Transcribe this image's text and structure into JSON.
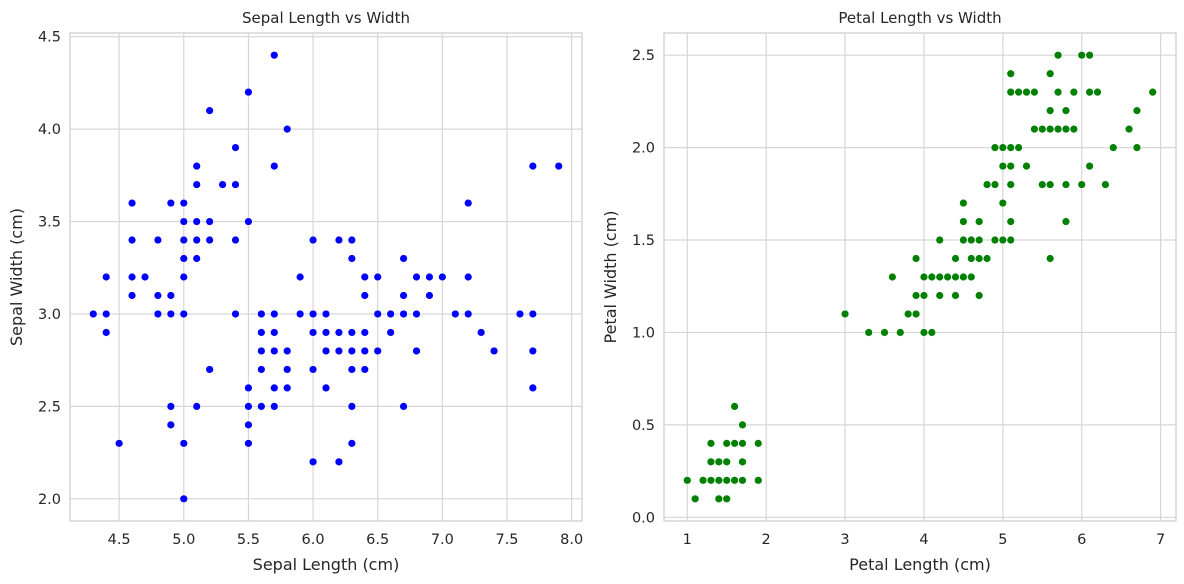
{
  "chart_data": [
    {
      "type": "scatter",
      "title": "Sepal Length vs Width",
      "xlabel": "Sepal Length (cm)",
      "ylabel": "Sepal Width (cm)",
      "xlim": [
        4.12,
        8.08
      ],
      "ylim": [
        1.88,
        4.52
      ],
      "xticks": [
        4.5,
        5.0,
        5.5,
        6.0,
        6.5,
        7.0,
        7.5,
        8.0
      ],
      "xtick_labels": [
        "4.5",
        "5.0",
        "5.5",
        "6.0",
        "6.5",
        "7.0",
        "7.5",
        "8.0"
      ],
      "yticks": [
        2.0,
        2.5,
        3.0,
        3.5,
        4.0,
        4.5
      ],
      "ytick_labels": [
        "2.0",
        "2.5",
        "3.0",
        "3.5",
        "4.0",
        "4.5"
      ],
      "grid": true,
      "color": "#0000ff",
      "points": [
        [
          5.1,
          3.5
        ],
        [
          4.9,
          3.0
        ],
        [
          4.7,
          3.2
        ],
        [
          4.6,
          3.1
        ],
        [
          5.0,
          3.6
        ],
        [
          5.4,
          3.9
        ],
        [
          4.6,
          3.4
        ],
        [
          5.0,
          3.4
        ],
        [
          4.4,
          2.9
        ],
        [
          4.9,
          3.1
        ],
        [
          5.4,
          3.7
        ],
        [
          4.8,
          3.4
        ],
        [
          4.8,
          3.0
        ],
        [
          4.3,
          3.0
        ],
        [
          5.8,
          4.0
        ],
        [
          5.7,
          4.4
        ],
        [
          5.4,
          3.9
        ],
        [
          5.1,
          3.5
        ],
        [
          5.7,
          3.8
        ],
        [
          5.1,
          3.8
        ],
        [
          5.4,
          3.4
        ],
        [
          5.1,
          3.7
        ],
        [
          4.6,
          3.6
        ],
        [
          5.1,
          3.3
        ],
        [
          4.8,
          3.4
        ],
        [
          5.0,
          3.0
        ],
        [
          5.0,
          3.4
        ],
        [
          5.2,
          3.5
        ],
        [
          5.2,
          3.4
        ],
        [
          4.7,
          3.2
        ],
        [
          4.8,
          3.1
        ],
        [
          5.4,
          3.4
        ],
        [
          5.2,
          4.1
        ],
        [
          5.5,
          4.2
        ],
        [
          4.9,
          3.1
        ],
        [
          5.0,
          3.2
        ],
        [
          5.5,
          3.5
        ],
        [
          4.9,
          3.6
        ],
        [
          4.4,
          3.0
        ],
        [
          5.1,
          3.4
        ],
        [
          5.0,
          3.5
        ],
        [
          4.5,
          2.3
        ],
        [
          4.4,
          3.2
        ],
        [
          5.0,
          3.5
        ],
        [
          5.1,
          3.8
        ],
        [
          4.8,
          3.0
        ],
        [
          5.1,
          3.8
        ],
        [
          4.6,
          3.2
        ],
        [
          5.3,
          3.7
        ],
        [
          5.0,
          3.3
        ],
        [
          7.0,
          3.2
        ],
        [
          6.4,
          3.2
        ],
        [
          6.9,
          3.1
        ],
        [
          5.5,
          2.3
        ],
        [
          6.5,
          2.8
        ],
        [
          5.7,
          2.8
        ],
        [
          6.3,
          3.3
        ],
        [
          4.9,
          2.4
        ],
        [
          6.6,
          2.9
        ],
        [
          5.2,
          2.7
        ],
        [
          5.0,
          2.0
        ],
        [
          5.9,
          3.0
        ],
        [
          6.0,
          2.2
        ],
        [
          6.1,
          2.9
        ],
        [
          5.6,
          2.9
        ],
        [
          6.7,
          3.1
        ],
        [
          5.6,
          3.0
        ],
        [
          5.8,
          2.7
        ],
        [
          6.2,
          2.2
        ],
        [
          5.6,
          2.5
        ],
        [
          5.9,
          3.2
        ],
        [
          6.1,
          2.8
        ],
        [
          6.3,
          2.5
        ],
        [
          6.1,
          2.8
        ],
        [
          6.4,
          2.9
        ],
        [
          6.6,
          3.0
        ],
        [
          6.8,
          2.8
        ],
        [
          6.7,
          3.0
        ],
        [
          6.0,
          2.9
        ],
        [
          5.7,
          2.6
        ],
        [
          5.5,
          2.4
        ],
        [
          5.5,
          2.4
        ],
        [
          5.8,
          2.7
        ],
        [
          6.0,
          2.7
        ],
        [
          5.4,
          3.0
        ],
        [
          6.0,
          3.4
        ],
        [
          6.7,
          3.1
        ],
        [
          6.3,
          2.3
        ],
        [
          5.6,
          3.0
        ],
        [
          5.5,
          2.5
        ],
        [
          5.5,
          2.6
        ],
        [
          6.1,
          3.0
        ],
        [
          5.8,
          2.6
        ],
        [
          5.0,
          2.3
        ],
        [
          5.6,
          2.7
        ],
        [
          5.7,
          3.0
        ],
        [
          5.7,
          2.9
        ],
        [
          6.2,
          2.9
        ],
        [
          5.1,
          2.5
        ],
        [
          5.7,
          2.8
        ],
        [
          6.3,
          3.3
        ],
        [
          5.8,
          2.7
        ],
        [
          7.1,
          3.0
        ],
        [
          6.3,
          2.9
        ],
        [
          6.5,
          3.0
        ],
        [
          7.6,
          3.0
        ],
        [
          4.9,
          2.5
        ],
        [
          7.3,
          2.9
        ],
        [
          6.7,
          2.5
        ],
        [
          7.2,
          3.6
        ],
        [
          6.5,
          3.2
        ],
        [
          6.4,
          2.7
        ],
        [
          6.8,
          3.0
        ],
        [
          5.7,
          2.5
        ],
        [
          5.8,
          2.8
        ],
        [
          6.4,
          3.2
        ],
        [
          6.5,
          3.0
        ],
        [
          7.7,
          3.8
        ],
        [
          7.7,
          2.6
        ],
        [
          6.0,
          2.2
        ],
        [
          6.9,
          3.2
        ],
        [
          5.6,
          2.8
        ],
        [
          7.7,
          2.8
        ],
        [
          6.3,
          2.7
        ],
        [
          6.7,
          3.3
        ],
        [
          7.2,
          3.2
        ],
        [
          6.2,
          2.8
        ],
        [
          6.1,
          3.0
        ],
        [
          6.4,
          2.8
        ],
        [
          7.2,
          3.0
        ],
        [
          7.4,
          2.8
        ],
        [
          7.9,
          3.8
        ],
        [
          6.4,
          2.8
        ],
        [
          6.3,
          2.8
        ],
        [
          6.1,
          2.6
        ],
        [
          7.7,
          3.0
        ],
        [
          6.3,
          3.4
        ],
        [
          6.4,
          3.1
        ],
        [
          6.0,
          3.0
        ],
        [
          6.9,
          3.1
        ],
        [
          6.7,
          3.1
        ],
        [
          6.9,
          3.1
        ],
        [
          5.8,
          2.7
        ],
        [
          6.8,
          3.2
        ],
        [
          6.7,
          3.3
        ],
        [
          6.7,
          3.0
        ],
        [
          6.3,
          2.5
        ],
        [
          6.5,
          3.0
        ],
        [
          6.2,
          3.4
        ],
        [
          5.9,
          3.0
        ]
      ]
    },
    {
      "type": "scatter",
      "title": "Petal Length vs Width",
      "xlabel": "Petal Length (cm)",
      "ylabel": "Petal Width (cm)",
      "xlim": [
        0.705,
        7.195
      ],
      "ylim": [
        -0.02,
        2.62
      ],
      "xticks": [
        1,
        2,
        3,
        4,
        5,
        6,
        7
      ],
      "xtick_labels": [
        "1",
        "2",
        "3",
        "4",
        "5",
        "6",
        "7"
      ],
      "yticks": [
        0.0,
        0.5,
        1.0,
        1.5,
        2.0,
        2.5
      ],
      "ytick_labels": [
        "0.0",
        "0.5",
        "1.0",
        "1.5",
        "2.0",
        "2.5"
      ],
      "grid": true,
      "color": "#008000",
      "points": [
        [
          1.4,
          0.2
        ],
        [
          1.4,
          0.2
        ],
        [
          1.3,
          0.2
        ],
        [
          1.5,
          0.2
        ],
        [
          1.4,
          0.2
        ],
        [
          1.7,
          0.4
        ],
        [
          1.4,
          0.3
        ],
        [
          1.5,
          0.2
        ],
        [
          1.4,
          0.2
        ],
        [
          1.5,
          0.1
        ],
        [
          1.5,
          0.2
        ],
        [
          1.6,
          0.2
        ],
        [
          1.4,
          0.1
        ],
        [
          1.1,
          0.1
        ],
        [
          1.2,
          0.2
        ],
        [
          1.5,
          0.4
        ],
        [
          1.3,
          0.4
        ],
        [
          1.4,
          0.3
        ],
        [
          1.7,
          0.3
        ],
        [
          1.5,
          0.3
        ],
        [
          1.7,
          0.2
        ],
        [
          1.5,
          0.4
        ],
        [
          1.0,
          0.2
        ],
        [
          1.7,
          0.5
        ],
        [
          1.9,
          0.2
        ],
        [
          1.6,
          0.2
        ],
        [
          1.6,
          0.4
        ],
        [
          1.5,
          0.2
        ],
        [
          1.4,
          0.2
        ],
        [
          1.6,
          0.2
        ],
        [
          1.6,
          0.2
        ],
        [
          1.5,
          0.4
        ],
        [
          1.5,
          0.1
        ],
        [
          1.4,
          0.2
        ],
        [
          1.5,
          0.2
        ],
        [
          1.2,
          0.2
        ],
        [
          1.3,
          0.2
        ],
        [
          1.4,
          0.1
        ],
        [
          1.3,
          0.2
        ],
        [
          1.5,
          0.2
        ],
        [
          1.3,
          0.3
        ],
        [
          1.3,
          0.3
        ],
        [
          1.3,
          0.2
        ],
        [
          1.6,
          0.6
        ],
        [
          1.9,
          0.4
        ],
        [
          1.4,
          0.3
        ],
        [
          1.6,
          0.2
        ],
        [
          1.4,
          0.2
        ],
        [
          1.5,
          0.2
        ],
        [
          1.4,
          0.2
        ],
        [
          4.7,
          1.4
        ],
        [
          4.5,
          1.5
        ],
        [
          4.9,
          1.5
        ],
        [
          4.0,
          1.3
        ],
        [
          4.6,
          1.5
        ],
        [
          4.5,
          1.3
        ],
        [
          4.7,
          1.6
        ],
        [
          3.3,
          1.0
        ],
        [
          4.6,
          1.3
        ],
        [
          3.9,
          1.4
        ],
        [
          3.5,
          1.0
        ],
        [
          4.2,
          1.5
        ],
        [
          4.0,
          1.0
        ],
        [
          4.7,
          1.4
        ],
        [
          3.6,
          1.3
        ],
        [
          4.4,
          1.4
        ],
        [
          4.5,
          1.5
        ],
        [
          4.1,
          1.0
        ],
        [
          4.5,
          1.5
        ],
        [
          3.9,
          1.1
        ],
        [
          4.8,
          1.8
        ],
        [
          4.0,
          1.3
        ],
        [
          4.9,
          1.5
        ],
        [
          4.7,
          1.2
        ],
        [
          4.3,
          1.3
        ],
        [
          4.4,
          1.4
        ],
        [
          4.8,
          1.4
        ],
        [
          5.0,
          1.7
        ],
        [
          4.5,
          1.5
        ],
        [
          3.5,
          1.0
        ],
        [
          3.8,
          1.1
        ],
        [
          3.7,
          1.0
        ],
        [
          3.9,
          1.2
        ],
        [
          5.1,
          1.6
        ],
        [
          4.5,
          1.5
        ],
        [
          4.5,
          1.6
        ],
        [
          4.7,
          1.5
        ],
        [
          4.4,
          1.3
        ],
        [
          4.1,
          1.3
        ],
        [
          4.0,
          1.3
        ],
        [
          4.4,
          1.2
        ],
        [
          4.6,
          1.4
        ],
        [
          4.0,
          1.2
        ],
        [
          3.3,
          1.0
        ],
        [
          4.2,
          1.3
        ],
        [
          4.2,
          1.2
        ],
        [
          4.2,
          1.3
        ],
        [
          4.3,
          1.3
        ],
        [
          3.0,
          1.1
        ],
        [
          4.1,
          1.3
        ],
        [
          6.0,
          2.5
        ],
        [
          5.1,
          1.9
        ],
        [
          5.9,
          2.1
        ],
        [
          5.6,
          1.8
        ],
        [
          5.8,
          2.2
        ],
        [
          6.6,
          2.1
        ],
        [
          4.5,
          1.7
        ],
        [
          6.3,
          1.8
        ],
        [
          5.8,
          1.8
        ],
        [
          6.1,
          2.5
        ],
        [
          5.1,
          2.0
        ],
        [
          5.3,
          1.9
        ],
        [
          5.5,
          2.1
        ],
        [
          5.0,
          2.0
        ],
        [
          5.1,
          2.4
        ],
        [
          5.3,
          2.3
        ],
        [
          5.5,
          1.8
        ],
        [
          6.7,
          2.2
        ],
        [
          6.9,
          2.3
        ],
        [
          5.0,
          1.5
        ],
        [
          5.7,
          2.3
        ],
        [
          4.9,
          2.0
        ],
        [
          6.7,
          2.0
        ],
        [
          4.9,
          1.8
        ],
        [
          5.7,
          2.1
        ],
        [
          6.0,
          1.8
        ],
        [
          4.8,
          1.8
        ],
        [
          4.9,
          1.8
        ],
        [
          5.6,
          2.1
        ],
        [
          5.8,
          1.6
        ],
        [
          6.1,
          1.9
        ],
        [
          6.4,
          2.0
        ],
        [
          5.6,
          2.2
        ],
        [
          5.1,
          1.5
        ],
        [
          5.6,
          1.4
        ],
        [
          6.1,
          2.3
        ],
        [
          5.6,
          2.4
        ],
        [
          5.5,
          1.8
        ],
        [
          4.8,
          1.8
        ],
        [
          5.4,
          2.1
        ],
        [
          5.6,
          2.4
        ],
        [
          5.1,
          2.3
        ],
        [
          5.1,
          1.9
        ],
        [
          5.9,
          2.3
        ],
        [
          5.7,
          2.5
        ],
        [
          5.2,
          2.3
        ],
        [
          5.0,
          1.9
        ],
        [
          5.2,
          2.0
        ],
        [
          5.4,
          2.3
        ],
        [
          5.1,
          1.8
        ],
        [
          6.2,
          2.3
        ],
        [
          5.8,
          2.1
        ],
        [
          5.9,
          2.1
        ],
        [
          5.5,
          2.1
        ],
        [
          5.2,
          2.3
        ],
        [
          5.3,
          2.3
        ],
        [
          5.0,
          2.0
        ],
        [
          5.2,
          2.0
        ]
      ]
    }
  ]
}
